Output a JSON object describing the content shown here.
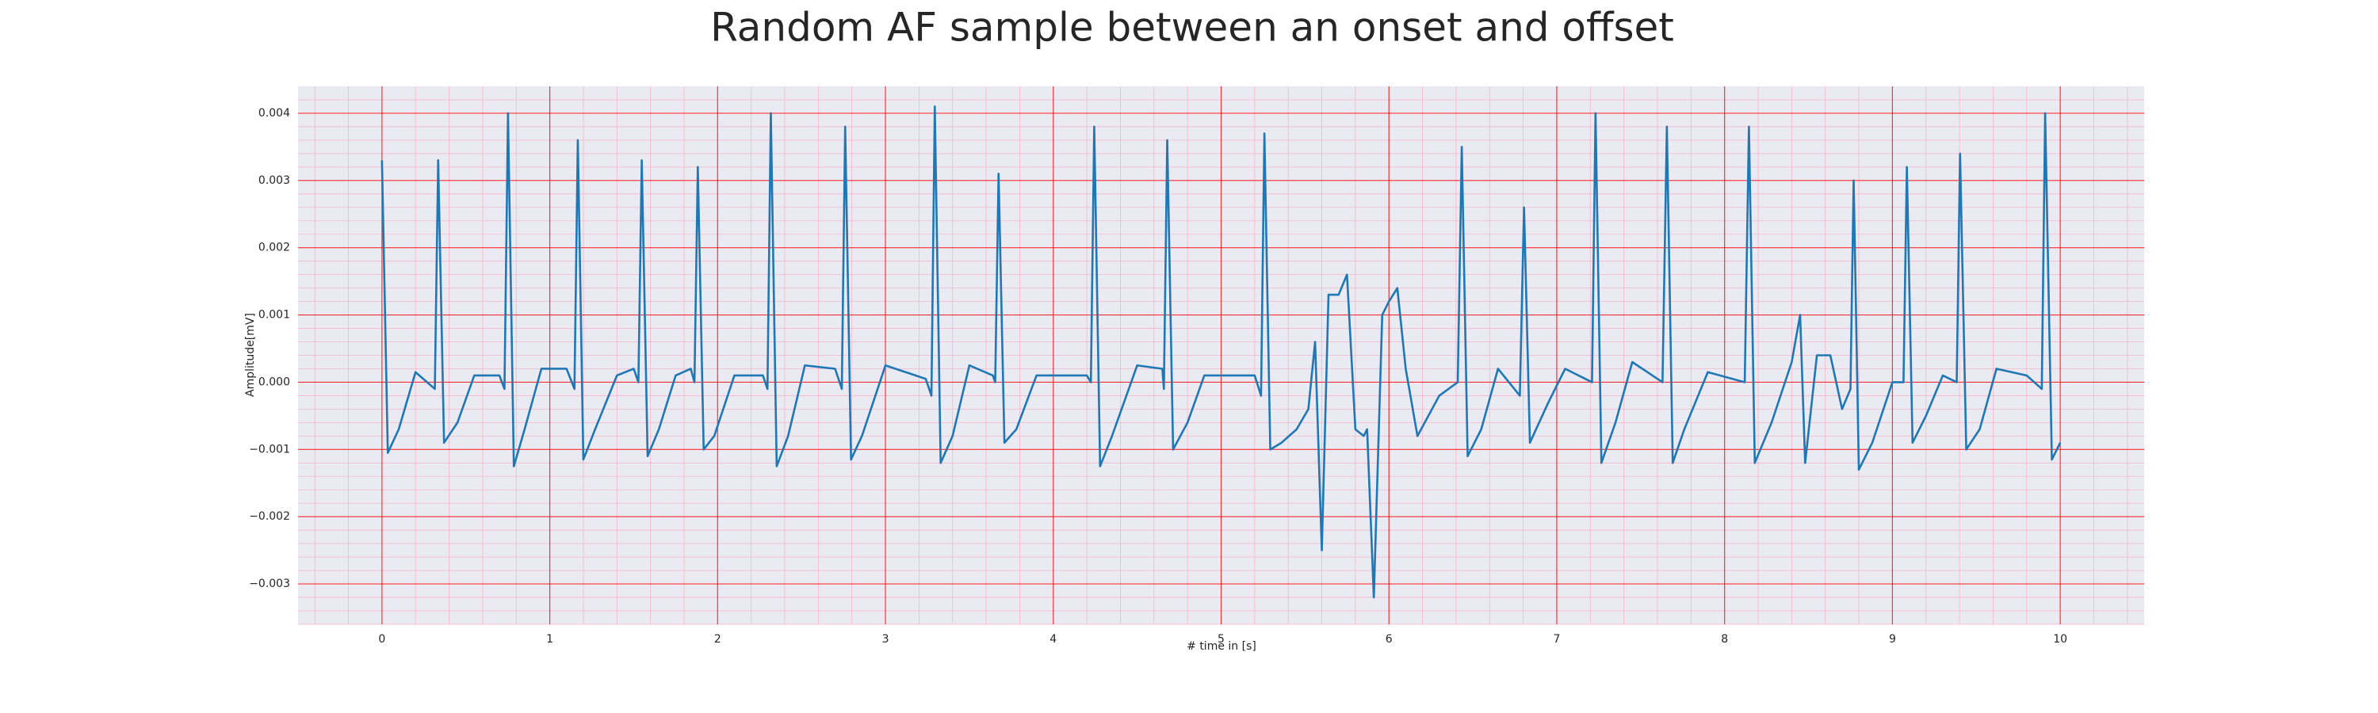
{
  "chart_data": {
    "type": "line",
    "title": "Random AF sample between an onset and offset",
    "xlabel": "# time in [s]",
    "ylabel": "Amplitude[mV]",
    "xlim": [
      -0.5,
      10.5
    ],
    "xticks": [
      0,
      1,
      2,
      3,
      4,
      5,
      6,
      7,
      8,
      9,
      10
    ],
    "ylim": [
      -0.0036,
      0.0044
    ],
    "yticks": [
      {
        "value": -0.003,
        "label": "−0.003"
      },
      {
        "value": -0.002,
        "label": "−0.002"
      },
      {
        "value": -0.001,
        "label": "−0.001"
      },
      {
        "value": 0,
        "label": "0.000"
      },
      0.001,
      0.002,
      0.003,
      0.004
    ],
    "grid": true,
    "grid_color": "#ff0000",
    "minor_grid": true,
    "background": "#eaeaf2",
    "series": [
      {
        "color": "#1f77b4",
        "x": [
          0,
          0.035,
          0.1,
          0.2,
          0.315,
          0.335,
          0.37,
          0.45,
          0.55,
          0.7,
          0.73,
          0.751,
          0.786,
          0.85,
          0.95,
          1.1,
          1.147,
          1.167,
          1.2,
          1.27,
          1.4,
          1.5,
          1.528,
          1.548,
          1.583,
          1.65,
          1.75,
          1.84,
          1.862,
          1.882,
          1.917,
          1.98,
          2.1,
          2.27,
          2.297,
          2.317,
          2.352,
          2.42,
          2.52,
          2.7,
          2.74,
          2.76,
          2.795,
          2.86,
          3.0,
          3.24,
          3.274,
          3.294,
          3.329,
          3.4,
          3.5,
          3.64,
          3.654,
          3.674,
          3.709,
          3.78,
          3.9,
          4.2,
          4.224,
          4.244,
          4.279,
          4.35,
          4.5,
          4.65,
          4.659,
          4.679,
          4.714,
          4.8,
          4.9,
          5.2,
          5.238,
          5.258,
          5.293,
          5.36,
          5.45,
          5.52,
          5.56,
          5.6,
          5.64,
          5.7,
          5.75,
          5.8,
          5.85,
          5.87,
          5.91,
          5.96,
          6.0,
          6.05,
          6.1,
          6.17,
          6.3,
          6.41,
          6.434,
          6.469,
          6.55,
          6.65,
          6.78,
          6.805,
          6.84,
          6.95,
          7.05,
          7.21,
          7.231,
          7.266,
          7.35,
          7.45,
          7.63,
          7.656,
          7.691,
          7.76,
          7.9,
          8.12,
          8.145,
          8.18,
          8.28,
          8.4,
          8.45,
          8.48,
          8.55,
          8.63,
          8.7,
          8.75,
          8.769,
          8.8,
          8.88,
          9.0,
          9.066,
          9.086,
          9.12,
          9.2,
          9.3,
          9.383,
          9.403,
          9.44,
          9.52,
          9.62,
          9.8,
          9.89,
          9.91,
          9.95,
          10.0
        ],
        "values": [
          0.0033,
          -0.00105,
          -0.0007,
          0.00015,
          -0.0001,
          0.0033,
          -0.0009,
          -0.0006,
          0.0001,
          0.0001,
          -0.0001,
          0.004,
          -0.00125,
          -0.0007,
          0.0002,
          0.0002,
          -0.0001,
          0.0036,
          -0.00115,
          -0.0007,
          0.0001,
          0.0002,
          0.0,
          0.0033,
          -0.0011,
          -0.0007,
          0.0001,
          0.0002,
          0.0,
          0.0032,
          -0.001,
          -0.0008,
          0.0001,
          0.0001,
          -0.0001,
          0.004,
          -0.00125,
          -0.0008,
          0.00025,
          0.0002,
          -0.0001,
          0.0038,
          -0.00115,
          -0.0008,
          0.00025,
          5e-05,
          -0.0002,
          0.0041,
          -0.0012,
          -0.0008,
          0.00025,
          0.0001,
          0.0,
          0.0031,
          -0.0009,
          -0.0007,
          0.0001,
          0.0001,
          0.0,
          0.0038,
          -0.00125,
          -0.0008,
          0.00025,
          0.0002,
          -0.0001,
          0.0036,
          -0.001,
          -0.0006,
          0.0001,
          0.0001,
          -0.0002,
          0.0037,
          -0.001,
          -0.0009,
          -0.0007,
          -0.0004,
          0.0006,
          -0.0025,
          0.0013,
          0.0013,
          0.0016,
          -0.0007,
          -0.0008,
          -0.0007,
          -0.0032,
          0.001,
          0.0012,
          0.0014,
          0.0002,
          -0.0008,
          -0.0002,
          0.0,
          0.0035,
          -0.0011,
          -0.0007,
          0.0002,
          -0.0002,
          0.0026,
          -0.0009,
          -0.0003,
          0.0002,
          0.0,
          0.004,
          -0.0012,
          -0.0006,
          0.0003,
          0.0,
          0.0038,
          -0.0012,
          -0.0007,
          0.00015,
          0.0,
          0.0038,
          -0.0012,
          -0.0006,
          0.0003,
          0.001,
          -0.0012,
          0.0004,
          0.0004,
          -0.0004,
          -0.0001,
          0.003,
          -0.0013,
          -0.0009,
          0.0,
          0.0,
          0.0032,
          -0.0009,
          -0.0005,
          0.0001,
          0.0,
          0.0034,
          -0.001,
          -0.0007,
          0.0002,
          0.0001,
          -0.0001,
          0.004,
          -0.00115,
          -0.0009
        ]
      }
    ]
  }
}
